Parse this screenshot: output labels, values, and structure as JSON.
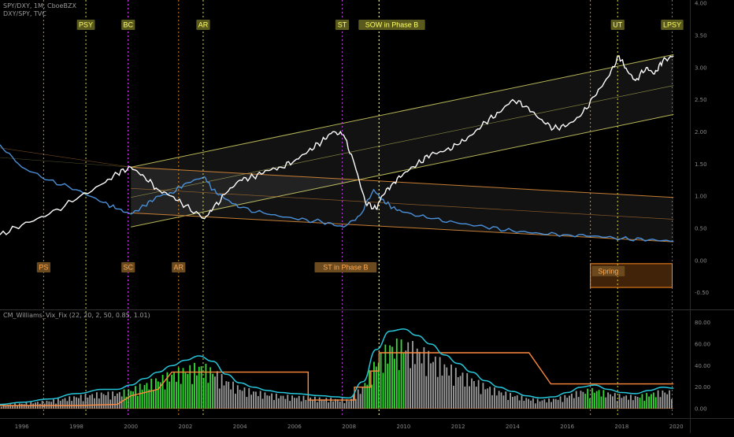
{
  "header": {
    "symbol_line": "SPY/DXY, 1M, CboeBZX",
    "compare_line": "DXY/SPY, TVC",
    "indicator_line": "CM_Williams_Vix_Fix (22, 20, 2, 50, 0.85, 1.01)"
  },
  "colors": {
    "ratio": "#ffffff",
    "inverse": "#4a90d9",
    "channel": "#c8c860",
    "channel_inverse": "#d88a3a",
    "vix_line": "#26c6da",
    "vix_bars": "#9e9e9e",
    "vix_highlight": "#33dd33",
    "vix_band": "#ff8a3d",
    "tag_yellow_bg": "#5a5a1e",
    "tag_yellow_fg": "#ffff66",
    "tag_orange_bg": "#6a4a1e",
    "tag_orange_fg": "#ffaa55",
    "line_yellow": "#ffff44",
    "line_orange": "#ff9922",
    "line_magenta": "#dd44ff"
  },
  "chart_data": [
    {
      "type": "line",
      "xlim": [
        1995.2,
        2020.5
      ],
      "ylim": [
        -0.75,
        4.05
      ],
      "yticks": [
        "4.00",
        "3.50",
        "3.00",
        "2.50",
        "2.00",
        "1.50",
        "1.00",
        "0.50",
        "0.00",
        "-0.50"
      ],
      "series": [
        {
          "name": "SPY/DXY",
          "x": [
            1995.2,
            1996,
            1997,
            1998,
            1999,
            1999.5,
            2000,
            2000.5,
            2001,
            2001.5,
            2002,
            2002.7,
            2003,
            2003.5,
            2004,
            2004.5,
            2005,
            2005.5,
            2006,
            2006.5,
            2007,
            2007.4,
            2007.8,
            2008.2,
            2008.6,
            2009.0,
            2009.2,
            2009.6,
            2010,
            2010.5,
            2011,
            2011.5,
            2012,
            2012.5,
            2013,
            2013.5,
            2014,
            2014.5,
            2015,
            2015.5,
            2016,
            2016.5,
            2017,
            2017.5,
            2017.9,
            2018.2,
            2018.5,
            2018.9,
            2019.2,
            2019.5,
            2019.9
          ],
          "y": [
            0.4,
            0.55,
            0.72,
            0.95,
            1.2,
            1.35,
            1.45,
            1.3,
            1.1,
            1.0,
            0.85,
            0.65,
            0.8,
            1.05,
            1.25,
            1.3,
            1.4,
            1.45,
            1.55,
            1.7,
            1.85,
            2.0,
            1.95,
            1.5,
            0.9,
            0.8,
            1.0,
            1.2,
            1.35,
            1.5,
            1.65,
            1.7,
            1.8,
            1.95,
            2.15,
            2.3,
            2.5,
            2.4,
            2.2,
            2.05,
            2.1,
            2.25,
            2.55,
            2.85,
            3.18,
            2.95,
            2.8,
            3.0,
            2.9,
            3.1,
            3.18
          ]
        },
        {
          "name": "DXY/SPY",
          "x": [
            1995.2,
            1996,
            1997,
            1998,
            1999,
            1999.5,
            2000,
            2000.5,
            2001,
            2001.5,
            2002,
            2002.7,
            2003,
            2003.5,
            2004,
            2005,
            2006,
            2007,
            2007.8,
            2008.4,
            2008.9,
            2009.2,
            2009.6,
            2010,
            2011,
            2012,
            2013,
            2014,
            2015,
            2016,
            2017,
            2018,
            2019,
            2019.9
          ],
          "y": [
            1.8,
            1.45,
            1.25,
            1.1,
            0.9,
            0.8,
            0.72,
            0.85,
            1.0,
            1.05,
            1.2,
            1.3,
            1.1,
            0.95,
            0.82,
            0.72,
            0.65,
            0.6,
            0.52,
            0.7,
            1.1,
            0.95,
            0.82,
            0.75,
            0.65,
            0.58,
            0.52,
            0.46,
            0.42,
            0.4,
            0.38,
            0.34,
            0.32,
            0.3
          ]
        }
      ],
      "channels": [
        {
          "kind": "rising",
          "x": [
            2000,
            2019.9
          ],
          "upper": [
            1.45,
            3.2
          ],
          "middle": [
            0.98,
            2.72
          ],
          "lower": [
            0.52,
            2.27
          ]
        },
        {
          "kind": "falling",
          "x": [
            2000,
            2019.9
          ],
          "upper": [
            1.45,
            0.98
          ],
          "middle": [
            1.12,
            0.64
          ],
          "lower": [
            0.74,
            0.29
          ]
        }
      ],
      "event_lines": [
        {
          "x": 1996.8,
          "color": "orange",
          "label": "PS",
          "label_pos": "bottom"
        },
        {
          "x": 1998.35,
          "color": "yellow",
          "label": "PSY",
          "label_pos": "top"
        },
        {
          "x": 1999.9,
          "color": "magenta",
          "label": "BC",
          "label_pos": "top"
        },
        {
          "x": 1999.9,
          "color": "magenta",
          "label": "SC",
          "label_pos": "bottom"
        },
        {
          "x": 2001.75,
          "color": "orange",
          "label": "AR",
          "label_pos": "bottom"
        },
        {
          "x": 2002.65,
          "color": "yellow",
          "label": "AR",
          "label_pos": "top"
        },
        {
          "x": 2007.75,
          "color": "magenta",
          "label": "ST",
          "label_pos": "top"
        },
        {
          "x": 2009.1,
          "color": "yellow",
          "label": "SOW in Phase B",
          "label_pos": "top"
        },
        {
          "x": 2009.1,
          "color": "yellow",
          "label": "ST in Phase B",
          "label_pos": "bottom_left"
        },
        {
          "x": 2016.85,
          "color": "orange",
          "label": "",
          "label_pos": ""
        },
        {
          "x": 2017.85,
          "color": "yellow",
          "label": "UT",
          "label_pos": "top"
        },
        {
          "x": 2019.85,
          "color": "magenta",
          "label": "LPSY",
          "label_pos": "top"
        }
      ],
      "box": {
        "label": "Spring",
        "x": [
          2016.85,
          2019.85
        ],
        "y": [
          -0.42,
          -0.05
        ]
      }
    },
    {
      "type": "bar",
      "title": "CM_Williams_Vix_Fix (22, 20, 2, 50, 0.85, 1.01)",
      "xlim": [
        1995.2,
        2020.5
      ],
      "ylim": [
        -8,
        90
      ],
      "yticks": [
        "80.00",
        "60.00",
        "40.00",
        "20.00",
        "0.00"
      ],
      "xticks": [
        "1996",
        "1998",
        "2000",
        "2002",
        "2004",
        "2006",
        "2008",
        "2010",
        "2012",
        "2014",
        "2016",
        "2018",
        "2020"
      ],
      "vix_line": {
        "x": [
          1995.2,
          1996,
          1997,
          1998,
          1999,
          1999.5,
          2000,
          2000.5,
          2001,
          2001.5,
          2002,
          2002.5,
          2003,
          2003.5,
          2004,
          2004.5,
          2005,
          2005.5,
          2006,
          2007,
          2007.5,
          2008,
          2008.5,
          2009,
          2009.5,
          2010,
          2010.5,
          2011,
          2011.5,
          2012,
          2012.5,
          2013,
          2013.5,
          2014,
          2014.5,
          2015,
          2015.5,
          2016,
          2016.5,
          2017,
          2017.5,
          2018,
          2018.5,
          2019,
          2019.5,
          2019.9
        ],
        "y": [
          4,
          6,
          9,
          14,
          18,
          18,
          22,
          28,
          34,
          40,
          45,
          49,
          44,
          32,
          24,
          20,
          17,
          15,
          14,
          12,
          11,
          10,
          25,
          55,
          72,
          74,
          68,
          60,
          50,
          42,
          34,
          26,
          20,
          16,
          12,
          10,
          11,
          15,
          20,
          22,
          18,
          15,
          14,
          17,
          20,
          19
        ]
      },
      "upper_band": {
        "x": [
          1995.2,
          1996,
          1997,
          1998,
          1999.5,
          2000,
          2000.5,
          2001,
          2001.5,
          2006.5,
          2006.5,
          2008.2,
          2008.2,
          2008.8,
          2008.8,
          2009.1,
          2009.1,
          2014,
          2014.6,
          2015.4,
          2019.9
        ],
        "y": [
          3,
          3,
          3,
          3,
          4,
          12,
          15,
          18,
          34,
          34,
          8,
          8,
          20,
          20,
          35,
          35,
          52,
          52,
          52,
          23,
          23
        ]
      },
      "highlight_periods": [
        [
          1999.7,
          2003.0
        ],
        [
          2008.5,
          2010.0
        ],
        [
          2016.6,
          2017.4
        ],
        [
          2018.6,
          2019.3
        ]
      ]
    }
  ]
}
